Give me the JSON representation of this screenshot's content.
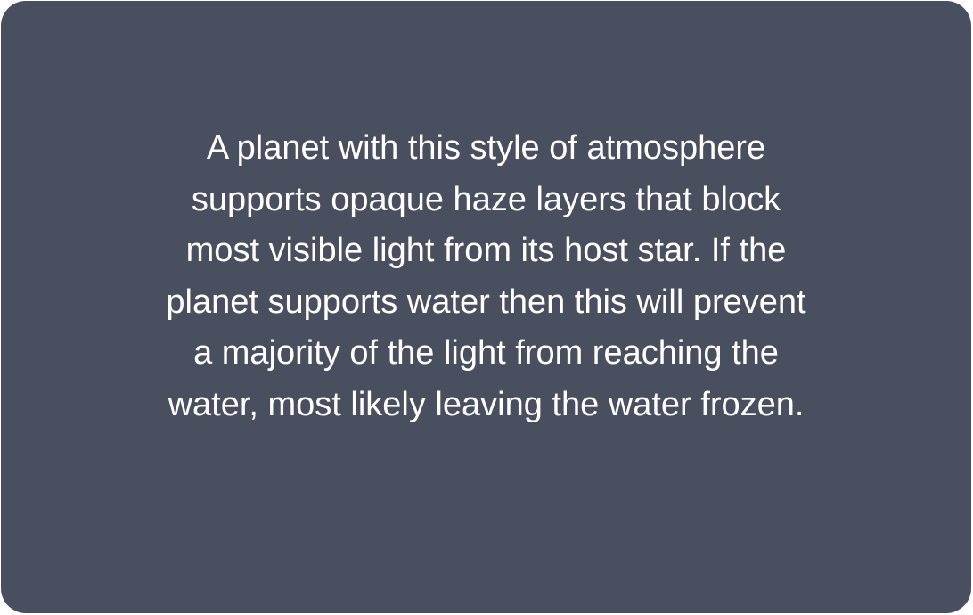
{
  "colors": {
    "card_background": "#4a4f5f",
    "text": "#ffffff",
    "page_background": "#ffffff"
  },
  "card": {
    "lines": [
      "A planet with this style of atmosphere",
      "supports opaque haze layers that block",
      "most visible light from its host star. If the",
      "planet supports water then this will prevent",
      "a majority of the light from reaching the",
      "water, most likely leaving the water frozen."
    ]
  }
}
